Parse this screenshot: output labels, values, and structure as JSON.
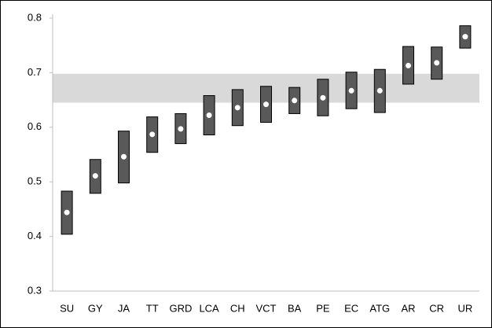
{
  "chart_data": {
    "type": "range",
    "categories": [
      "SU",
      "GY",
      "JA",
      "TT",
      "GRD",
      "LCA",
      "CH",
      "VCT",
      "BA",
      "PE",
      "EC",
      "ATG",
      "AR",
      "CR",
      "UR"
    ],
    "low": [
      0.404,
      0.479,
      0.498,
      0.554,
      0.57,
      0.586,
      0.603,
      0.609,
      0.625,
      0.621,
      0.634,
      0.627,
      0.679,
      0.688,
      0.745
    ],
    "high": [
      0.483,
      0.541,
      0.593,
      0.619,
      0.625,
      0.658,
      0.669,
      0.675,
      0.673,
      0.688,
      0.701,
      0.706,
      0.748,
      0.747,
      0.786
    ],
    "values": [
      0.444,
      0.511,
      0.546,
      0.587,
      0.597,
      0.622,
      0.636,
      0.642,
      0.649,
      0.654,
      0.667,
      0.667,
      0.713,
      0.718,
      0.766
    ],
    "band": [
      0.645,
      0.698
    ],
    "band_color": "#d9d9d9",
    "bar_color": "#595959",
    "point_color": "#ffffff",
    "ylim": [
      0.3,
      0.8
    ],
    "yticks": [
      0.3,
      0.4,
      0.5,
      0.6,
      0.7,
      0.8
    ]
  }
}
